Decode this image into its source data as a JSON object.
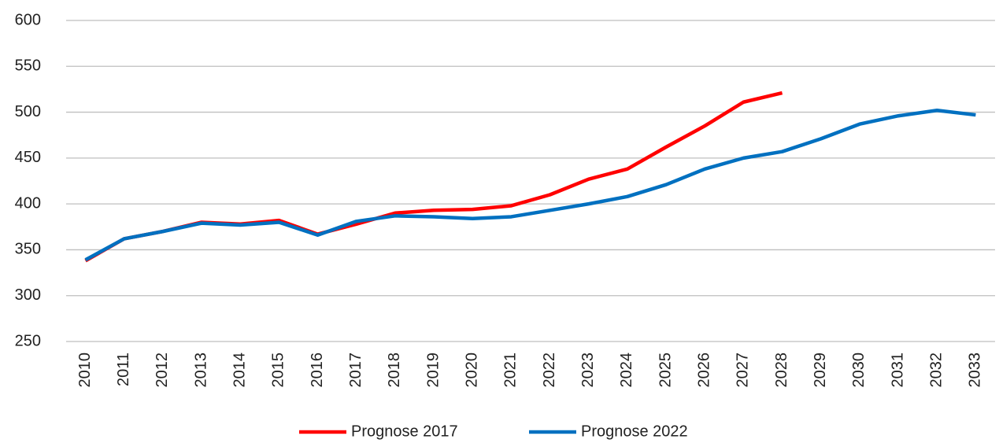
{
  "chart_data": {
    "type": "line",
    "categories": [
      "2010",
      "2011",
      "2012",
      "2013",
      "2014",
      "2015",
      "2016",
      "2017",
      "2018",
      "2019",
      "2020",
      "2021",
      "2022",
      "2023",
      "2024",
      "2025",
      "2026",
      "2027",
      "2028",
      "2029",
      "2030",
      "2031",
      "2032",
      "2033"
    ],
    "series": [
      {
        "name": "Prognose 2017",
        "color": "#ff0000",
        "values": [
          338,
          362,
          370,
          380,
          378,
          382,
          367,
          378,
          390,
          393,
          394,
          398,
          410,
          427,
          438,
          462,
          485,
          511,
          521,
          null,
          null,
          null,
          null,
          null
        ]
      },
      {
        "name": "Prognose 2022",
        "color": "#0070c0",
        "values": [
          339,
          362,
          370,
          379,
          377,
          380,
          366,
          381,
          387,
          386,
          384,
          386,
          393,
          400,
          408,
          421,
          438,
          450,
          457,
          471,
          487,
          496,
          502,
          497
        ]
      }
    ],
    "ylim": [
      250,
      600
    ],
    "yticks": [
      250,
      300,
      350,
      400,
      450,
      500,
      550,
      600
    ],
    "grid": true,
    "legend": "bottom"
  }
}
